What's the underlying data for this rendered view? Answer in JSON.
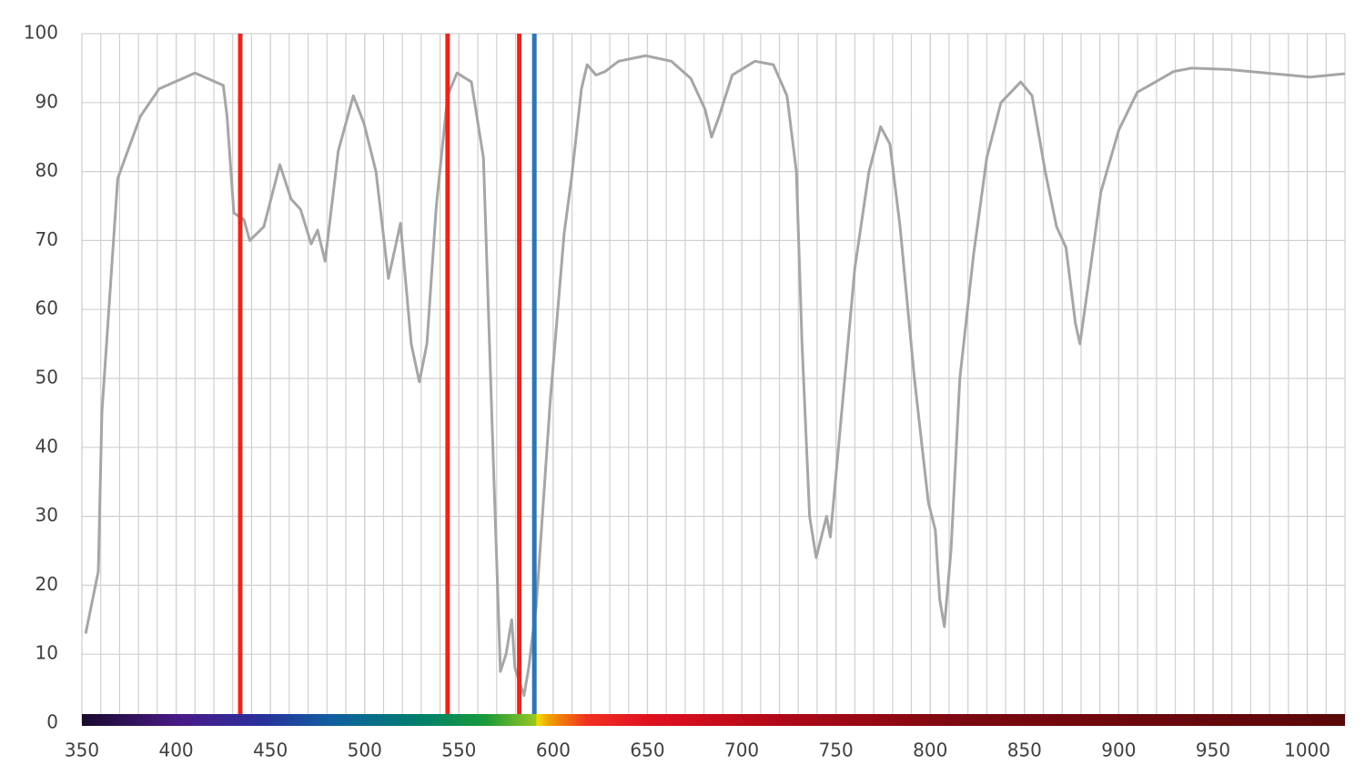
{
  "chart_data": {
    "type": "line",
    "x": [
      352,
      358.7,
      360.6,
      369,
      381,
      391,
      410,
      425,
      427,
      430.6,
      436,
      439,
      446.5,
      455,
      461,
      466,
      471.6,
      475,
      479,
      486,
      494,
      499.6,
      506,
      512.6,
      519,
      524.7,
      529,
      533,
      538,
      544,
      549,
      556.6,
      563,
      568,
      572,
      575,
      578,
      579.7,
      584.5,
      587,
      591,
      598.5,
      605.8,
      609.7,
      615,
      618,
      622.7,
      627.5,
      634.7,
      649,
      662.7,
      673,
      680.6,
      684,
      688,
      695,
      707,
      716.8,
      724,
      729,
      732,
      736,
      739.5,
      745,
      747,
      753,
      760,
      767.5,
      773.7,
      778.6,
      784,
      791.6,
      799,
      802.7,
      805,
      807.5,
      811,
      815.7,
      823,
      830,
      837.5,
      848,
      854,
      861,
      867,
      872,
      877,
      879.4,
      883,
      890.5,
      900,
      909.8,
      919.5,
      929,
      938.6,
      958,
      982,
      1001.5,
      1020
    ],
    "series": [
      {
        "color": "#a6a6a6",
        "values": [
          13,
          22,
          45,
          79,
          88,
          92,
          94.3,
          92.5,
          88,
          74,
          73,
          70,
          72,
          81,
          76,
          74.5,
          69.5,
          71.5,
          67,
          83,
          91,
          87,
          80,
          64.5,
          72.5,
          55,
          49.5,
          55,
          75,
          91,
          94.3,
          93,
          82,
          40,
          7.5,
          10,
          15,
          8,
          4,
          8,
          17,
          47,
          71,
          79,
          92,
          95.5,
          94,
          94.5,
          96,
          96.8,
          96,
          93.5,
          89,
          85,
          88,
          94,
          96,
          95.5,
          91,
          80,
          55,
          30,
          24,
          30,
          27,
          45,
          66,
          80,
          86.5,
          84,
          72,
          50,
          32,
          28,
          18,
          14,
          25,
          50,
          68,
          82,
          90,
          93,
          91,
          80,
          72,
          69,
          58,
          55,
          62,
          77,
          86,
          91.5,
          93,
          94.5,
          95,
          94.8,
          94.2,
          93.7,
          94.2
        ]
      }
    ],
    "markers": [
      {
        "x": 434,
        "color": "#e8261e"
      },
      {
        "x": 544,
        "color": "#e8261e"
      },
      {
        "x": 582,
        "color": "#e8261e"
      },
      {
        "x": 590,
        "color": "#2e75b6"
      }
    ],
    "xlim": [
      350,
      1020
    ],
    "ylim": [
      0,
      100
    ],
    "xticks": [
      350,
      400,
      450,
      500,
      550,
      600,
      650,
      700,
      750,
      800,
      850,
      900,
      950,
      1000
    ],
    "yticks": [
      0,
      10,
      20,
      30,
      40,
      50,
      60,
      70,
      80,
      90,
      100
    ],
    "x_minor_step": 10,
    "grid": true
  }
}
